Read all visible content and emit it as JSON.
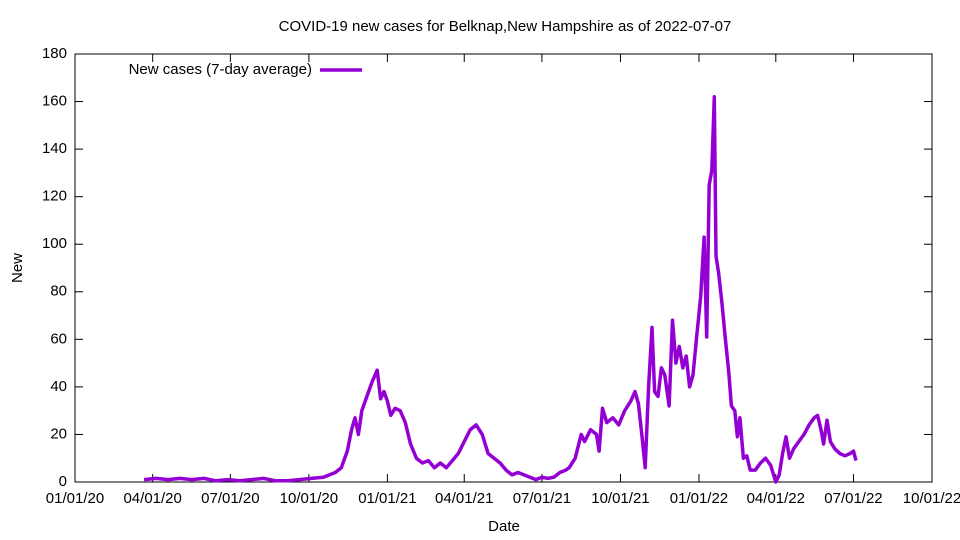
{
  "chart_data": {
    "type": "line",
    "title": "COVID-19 new cases for Belknap,New Hampshire as of 2022-07-07",
    "xlabel": "Date",
    "ylabel": "New",
    "legend": "top-left",
    "xlim": [
      "2020-01-01",
      "2022-10-01"
    ],
    "xticks": [
      {
        "value": "2020-01-01",
        "label": "01/01/20"
      },
      {
        "value": "2020-04-01",
        "label": "04/01/20"
      },
      {
        "value": "2020-07-01",
        "label": "07/01/20"
      },
      {
        "value": "2020-10-01",
        "label": "10/01/20"
      },
      {
        "value": "2021-01-01",
        "label": "01/01/21"
      },
      {
        "value": "2021-04-01",
        "label": "04/01/21"
      },
      {
        "value": "2021-07-01",
        "label": "07/01/21"
      },
      {
        "value": "2021-10-01",
        "label": "10/01/21"
      },
      {
        "value": "2022-01-01",
        "label": "01/01/22"
      },
      {
        "value": "2022-04-01",
        "label": "04/01/22"
      },
      {
        "value": "2022-07-01",
        "label": "07/01/22"
      },
      {
        "value": "2022-10-01",
        "label": "10/01/22"
      }
    ],
    "ylim": [
      0,
      180
    ],
    "yticks": [
      0,
      20,
      40,
      60,
      80,
      100,
      120,
      140,
      160,
      180
    ],
    "x": [
      "2020-03-22",
      "2020-04-05",
      "2020-04-19",
      "2020-05-03",
      "2020-05-17",
      "2020-05-31",
      "2020-06-14",
      "2020-06-28",
      "2020-07-12",
      "2020-07-26",
      "2020-08-09",
      "2020-08-23",
      "2020-09-06",
      "2020-09-20",
      "2020-10-04",
      "2020-10-18",
      "2020-11-01",
      "2020-11-08",
      "2020-11-15",
      "2020-11-20",
      "2020-11-24",
      "2020-11-28",
      "2020-12-02",
      "2020-12-08",
      "2020-12-14",
      "2020-12-20",
      "2020-12-24",
      "2020-12-28",
      "2021-01-01",
      "2021-01-05",
      "2021-01-10",
      "2021-01-16",
      "2021-01-22",
      "2021-01-28",
      "2021-02-04",
      "2021-02-11",
      "2021-02-18",
      "2021-02-25",
      "2021-03-04",
      "2021-03-11",
      "2021-03-18",
      "2021-03-25",
      "2021-04-01",
      "2021-04-08",
      "2021-04-15",
      "2021-04-22",
      "2021-04-29",
      "2021-05-06",
      "2021-05-13",
      "2021-05-20",
      "2021-05-27",
      "2021-06-03",
      "2021-06-10",
      "2021-06-17",
      "2021-06-24",
      "2021-07-01",
      "2021-07-08",
      "2021-07-15",
      "2021-07-22",
      "2021-07-29",
      "2021-08-02",
      "2021-08-09",
      "2021-08-16",
      "2021-08-20",
      "2021-08-27",
      "2021-09-03",
      "2021-09-06",
      "2021-09-10",
      "2021-09-15",
      "2021-09-22",
      "2021-09-29",
      "2021-10-06",
      "2021-10-13",
      "2021-10-18",
      "2021-10-22",
      "2021-10-26",
      "2021-10-30",
      "2021-11-03",
      "2021-11-07",
      "2021-11-10",
      "2021-11-14",
      "2021-11-18",
      "2021-11-22",
      "2021-11-27",
      "2021-12-01",
      "2021-12-05",
      "2021-12-09",
      "2021-12-13",
      "2021-12-17",
      "2021-12-21",
      "2021-12-25",
      "2021-12-29",
      "2022-01-03",
      "2022-01-07",
      "2022-01-10",
      "2022-01-13",
      "2022-01-16",
      "2022-01-19",
      "2022-01-21",
      "2022-01-24",
      "2022-01-28",
      "2022-02-01",
      "2022-02-05",
      "2022-02-08",
      "2022-02-12",
      "2022-02-15",
      "2022-02-18",
      "2022-02-22",
      "2022-02-26",
      "2022-03-02",
      "2022-03-08",
      "2022-03-14",
      "2022-03-20",
      "2022-03-26",
      "2022-04-01",
      "2022-04-05",
      "2022-04-09",
      "2022-04-13",
      "2022-04-17",
      "2022-04-22",
      "2022-04-28",
      "2022-05-04",
      "2022-05-10",
      "2022-05-16",
      "2022-05-20",
      "2022-05-24",
      "2022-05-27",
      "2022-05-31",
      "2022-06-04",
      "2022-06-09",
      "2022-06-15",
      "2022-06-21",
      "2022-06-27",
      "2022-07-01",
      "2022-07-04"
    ],
    "series": [
      {
        "name": "New cases (7-day average)",
        "color": "#9400d3",
        "values": [
          1,
          1.5,
          1,
          1.5,
          1,
          1.5,
          0.5,
          1,
          0.5,
          1,
          1.5,
          0.5,
          0.5,
          1,
          1.5,
          2,
          4,
          6,
          13,
          22,
          27,
          20,
          30,
          36,
          42,
          47,
          35,
          38,
          34,
          28,
          31,
          30,
          25,
          16,
          10,
          8,
          9,
          6,
          8,
          6,
          9,
          12,
          17,
          22,
          24,
          20,
          12,
          10,
          8,
          5,
          3,
          4,
          3,
          2,
          1,
          2,
          1.5,
          2,
          4,
          5,
          6,
          10,
          20,
          17,
          22,
          20,
          13,
          31,
          25,
          27,
          24,
          30,
          34,
          38,
          33,
          20,
          6,
          40,
          65,
          38,
          36,
          48,
          45,
          32,
          68,
          50,
          57,
          48,
          53,
          40,
          45,
          60,
          78,
          103,
          61,
          125,
          131,
          162,
          95,
          88,
          75,
          60,
          46,
          32,
          30,
          19,
          27,
          10,
          11,
          5,
          5,
          8,
          10,
          7,
          0,
          3,
          12,
          19,
          10,
          14,
          17,
          20,
          24,
          27,
          28,
          22,
          16,
          26,
          17,
          14,
          12,
          11,
          12,
          13,
          9
        ]
      }
    ]
  }
}
